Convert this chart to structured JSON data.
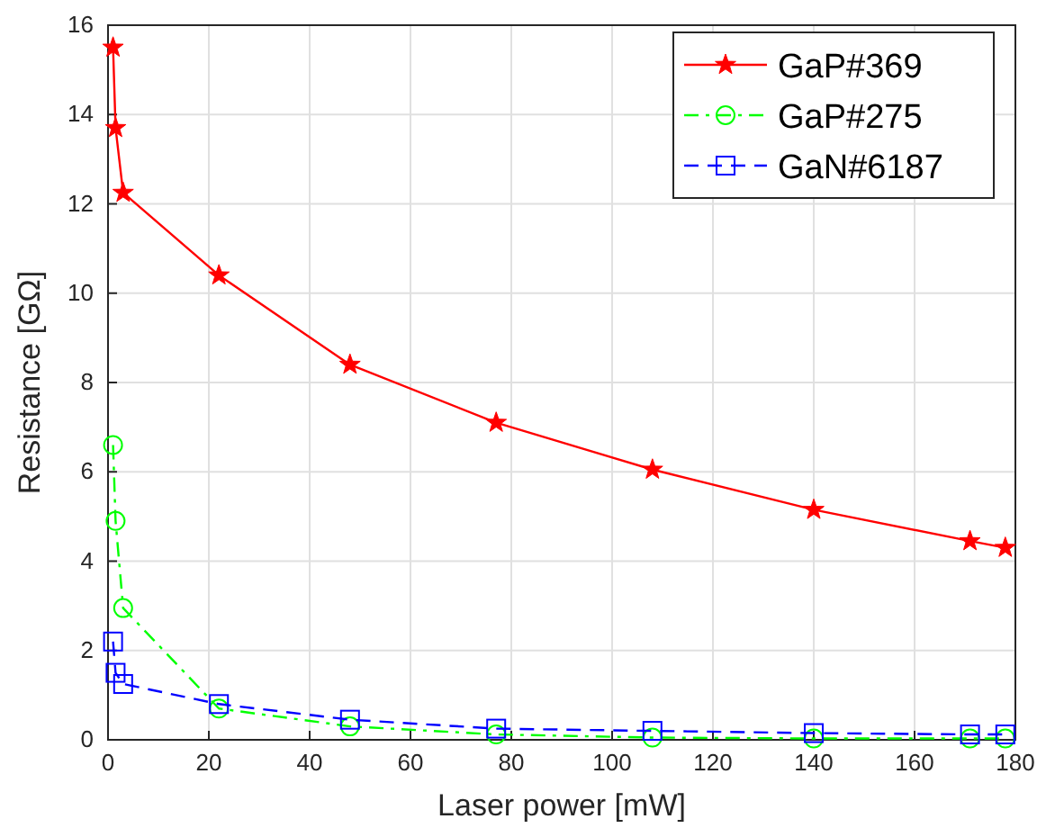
{
  "chart_data": {
    "type": "line",
    "xlabel": "Laser power [mW]",
    "ylabel": "Resistance [GΩ]",
    "x": [
      1,
      1.5,
      3,
      22,
      48,
      77,
      108,
      140,
      171,
      178
    ],
    "series": [
      {
        "name": "GaP#369",
        "color": "#ff0000",
        "marker": "star",
        "line_style": "solid",
        "values": [
          15.5,
          13.7,
          12.25,
          10.4,
          8.4,
          7.1,
          6.05,
          5.15,
          4.45,
          4.3
        ]
      },
      {
        "name": "GaP#275",
        "color": "#00ff00",
        "marker": "circle",
        "line_style": "dashdot",
        "values": [
          6.6,
          4.9,
          2.95,
          0.7,
          0.3,
          0.12,
          0.05,
          0.03,
          0.03,
          0.03
        ]
      },
      {
        "name": "GaN#6187",
        "color": "#0000ff",
        "marker": "square",
        "line_style": "dashed",
        "values": [
          2.2,
          1.5,
          1.25,
          0.8,
          0.45,
          0.25,
          0.2,
          0.15,
          0.12,
          0.12
        ]
      }
    ],
    "xlim": [
      0,
      180
    ],
    "xticks": [
      0,
      20,
      40,
      60,
      80,
      100,
      120,
      140,
      160,
      180
    ],
    "ylim": [
      0,
      16
    ],
    "yticks": [
      0,
      2,
      4,
      6,
      8,
      10,
      12,
      14,
      16
    ],
    "grid": true,
    "legend": "top right"
  }
}
